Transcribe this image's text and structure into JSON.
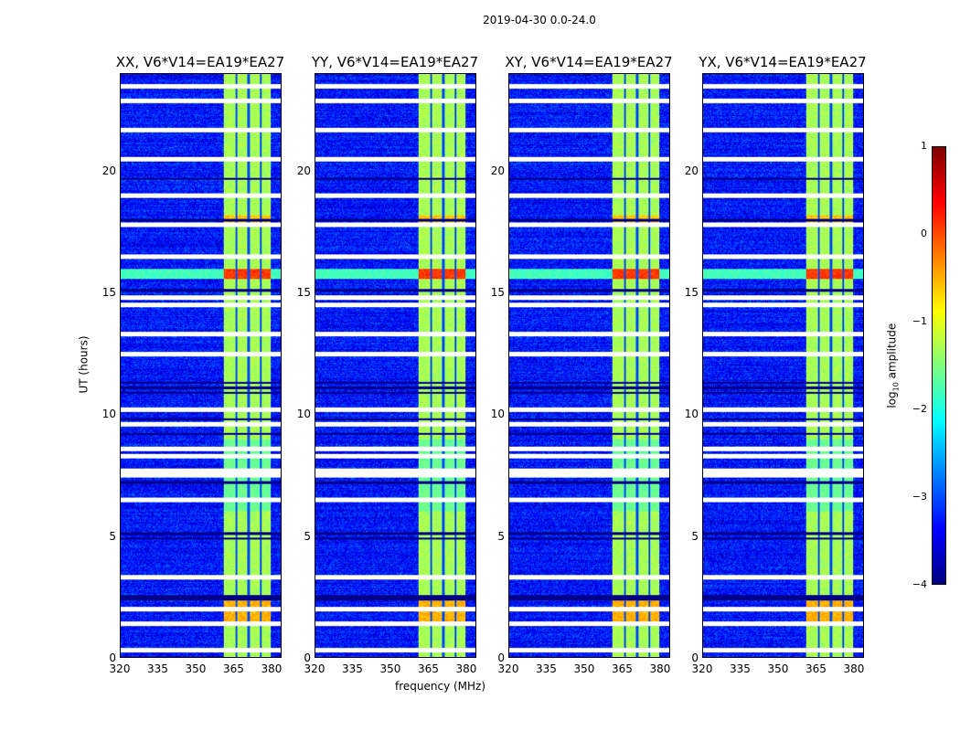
{
  "suptitle": "2019-04-30 0.0-24.0",
  "chart_data": {
    "type": "heatmap",
    "xlabel": "frequency (MHz)",
    "ylabel": "UT (hours)",
    "xlim": [
      320,
      384
    ],
    "ylim": [
      0,
      24
    ],
    "xticks": [
      "320",
      "335",
      "350",
      "365",
      "380"
    ],
    "xtick_values": [
      320,
      335,
      350,
      365,
      380
    ],
    "yticks": [
      "0",
      "5",
      "10",
      "15",
      "20"
    ],
    "ytick_values": [
      0,
      5,
      10,
      15,
      20
    ],
    "panels": [
      {
        "title": "XX, V6*V14=EA19*EA27",
        "seed": 1
      },
      {
        "title": "YY, V6*V14=EA19*EA27",
        "seed": 2
      },
      {
        "title": "XY, V6*V14=EA19*EA27",
        "seed": 3
      },
      {
        "title": "YX, V6*V14=EA19*EA27",
        "seed": 4
      }
    ],
    "rfi_band_mhz": [
      361,
      380
    ],
    "rfi_band_level": -1.3,
    "background_level": -3.3,
    "strong_rfi_hours": [
      [
        15.6,
        16.0,
        0.1
      ],
      [
        1.4,
        2.5,
        -0.5
      ],
      [
        17.8,
        18.2,
        -0.6
      ]
    ],
    "flagged_hours": [
      0.3,
      1.4,
      2.0,
      3.3,
      6.5,
      7.5,
      7.7,
      8.3,
      8.6,
      9.6,
      10.2,
      12.5,
      13.3,
      14.5,
      14.8,
      16.5,
      17.8,
      19.0,
      20.5,
      21.7,
      22.9,
      23.5
    ],
    "dark_hours": [
      2.4,
      2.5,
      4.9,
      5.1,
      7.2,
      9.2,
      9.8,
      10.9,
      11.1,
      11.3,
      15.1,
      19.7,
      18.0
    ],
    "colorbar": {
      "label": "log10 amplitude",
      "label_main": "log",
      "label_sub": "10",
      "label_rest": " amplitude",
      "range": [
        -4,
        1
      ],
      "ticks": [
        "1",
        "0",
        "−1",
        "−2",
        "−3",
        "−4"
      ],
      "tick_values": [
        1,
        0,
        -1,
        -2,
        -3,
        -4
      ],
      "colormap": "jet"
    }
  }
}
